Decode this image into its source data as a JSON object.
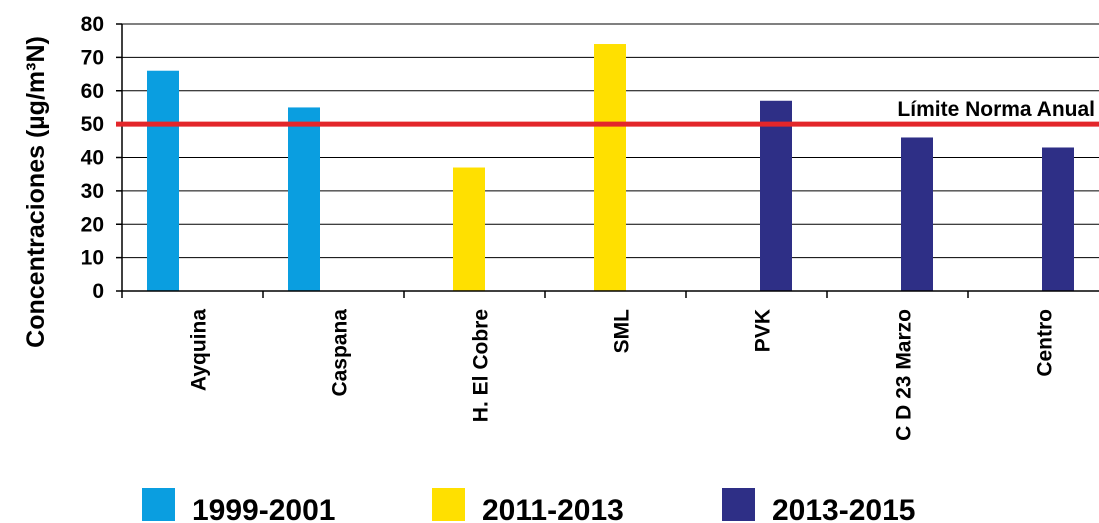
{
  "chart_data": {
    "type": "bar",
    "ylabel": "Concentraciones (µg/m³N)",
    "ylim": [
      0,
      80
    ],
    "yticks": [
      0,
      10,
      20,
      30,
      40,
      50,
      60,
      70,
      80
    ],
    "grid": true,
    "categories": [
      "Ayquina",
      "Caspana",
      "H. El Cobre",
      "SML",
      "PVK",
      "C D 23 Marzo",
      "Centro"
    ],
    "series": [
      {
        "name": "1999-2001",
        "color": "#0A9EE0",
        "values": [
          66,
          55,
          null,
          null,
          null,
          null,
          null
        ]
      },
      {
        "name": "2011-2013",
        "color": "#FFE000",
        "values": [
          null,
          null,
          37,
          74,
          null,
          null,
          null
        ]
      },
      {
        "name": "2013-2015",
        "color": "#2E2F86",
        "values": [
          null,
          null,
          null,
          null,
          57,
          46,
          43
        ]
      }
    ],
    "reference_line": {
      "value": 50,
      "label": "Límite Norma Anual",
      "color": "#E3262A"
    },
    "legend_position": "bottom"
  }
}
